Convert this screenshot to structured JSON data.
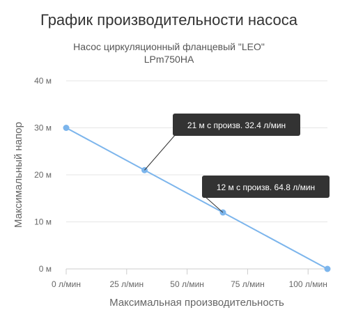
{
  "chart_data": {
    "type": "line",
    "title": "График производительности насоса",
    "subtitle_lines": [
      "Насос циркуляционный фланцевый \"LEO\"",
      "LPm750HA"
    ],
    "xlabel": "Максимальная производительность",
    "ylabel": "Максимальный напор",
    "xlim": [
      0,
      108
    ],
    "ylim": [
      0,
      40
    ],
    "x_ticks": [
      0,
      25,
      50,
      75,
      100
    ],
    "x_tick_labels": [
      "0 л/мин",
      "25 л/мин",
      "50 л/мин",
      "75 л/мин",
      "100 л/мин"
    ],
    "y_ticks": [
      0,
      10,
      20,
      30,
      40
    ],
    "y_tick_labels": [
      "0 м",
      "10 м",
      "20 м",
      "30 м",
      "40 м"
    ],
    "grid": "horizontal",
    "series": [
      {
        "x": [
          0,
          32.4,
          64.8,
          108
        ],
        "y": [
          30,
          21,
          12,
          0
        ]
      }
    ],
    "annotations": [
      {
        "text": "21 м с произв. 32.4 л/мин",
        "x": 32.4,
        "y": 21
      },
      {
        "text": "12 м с произв. 64.8 л/мин",
        "x": 64.8,
        "y": 12
      }
    ],
    "colors": {
      "line": "#7cb5ec",
      "annotation_bg": "#333333",
      "grid": "#e6e6e6"
    }
  }
}
